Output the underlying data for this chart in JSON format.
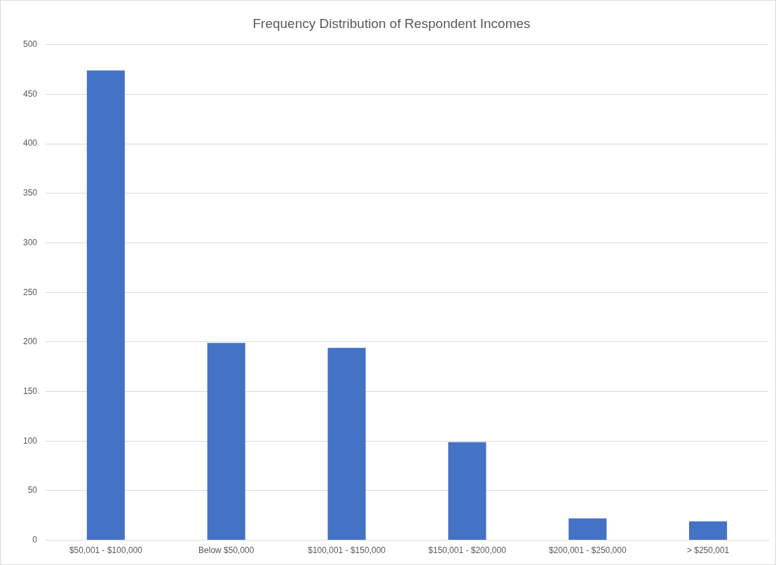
{
  "chart_data": {
    "type": "bar",
    "title": "Frequency Distribution of Respondent Incomes",
    "categories": [
      "$50,001 - $100,000",
      "Below $50,000",
      "$100,001 - $150,000",
      "$150,001 - $200,000",
      "$200,001 - $250,000",
      "> $250,001"
    ],
    "values": [
      474,
      199,
      194,
      99,
      22,
      19
    ],
    "color": "#4472c4",
    "ylim": [
      0,
      500
    ],
    "yticks": [
      0,
      50,
      100,
      150,
      200,
      250,
      300,
      350,
      400,
      450,
      500
    ],
    "grid": "y",
    "legend": false
  }
}
